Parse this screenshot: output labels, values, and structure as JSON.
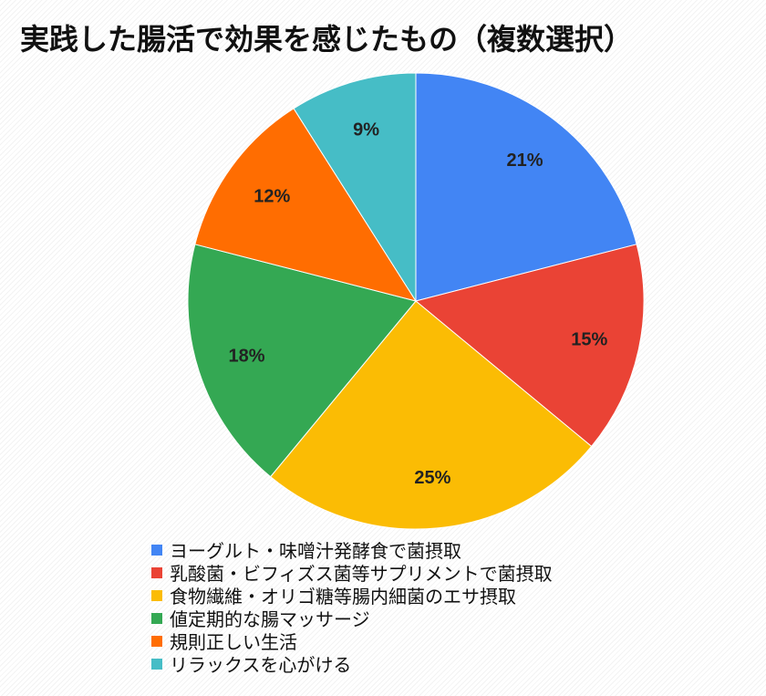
{
  "chart_data": {
    "type": "pie",
    "title": "実践した腸活で効果を感じたもの（複数選択）",
    "categories": [
      "ヨーグルト・味噌汁発酵食で菌摂取",
      "乳酸菌・ビフィズス菌等サプリメントで菌摂取",
      "食物繊維・オリゴ糖等腸内細菌のエサ摂取",
      "値定期的な腸マッサージ",
      "規則正しい生活",
      "リラックスを心がける"
    ],
    "values": [
      21,
      15,
      25,
      18,
      12,
      9
    ],
    "labels": [
      "21%",
      "15%",
      "25%",
      "18%",
      "12%",
      "9%"
    ],
    "colors": [
      "#4285f4",
      "#ea4335",
      "#fbbc04",
      "#34a853",
      "#ff6d01",
      "#46bdc6"
    ],
    "legend_position": "bottom",
    "start_angle": "top, clockwise"
  }
}
